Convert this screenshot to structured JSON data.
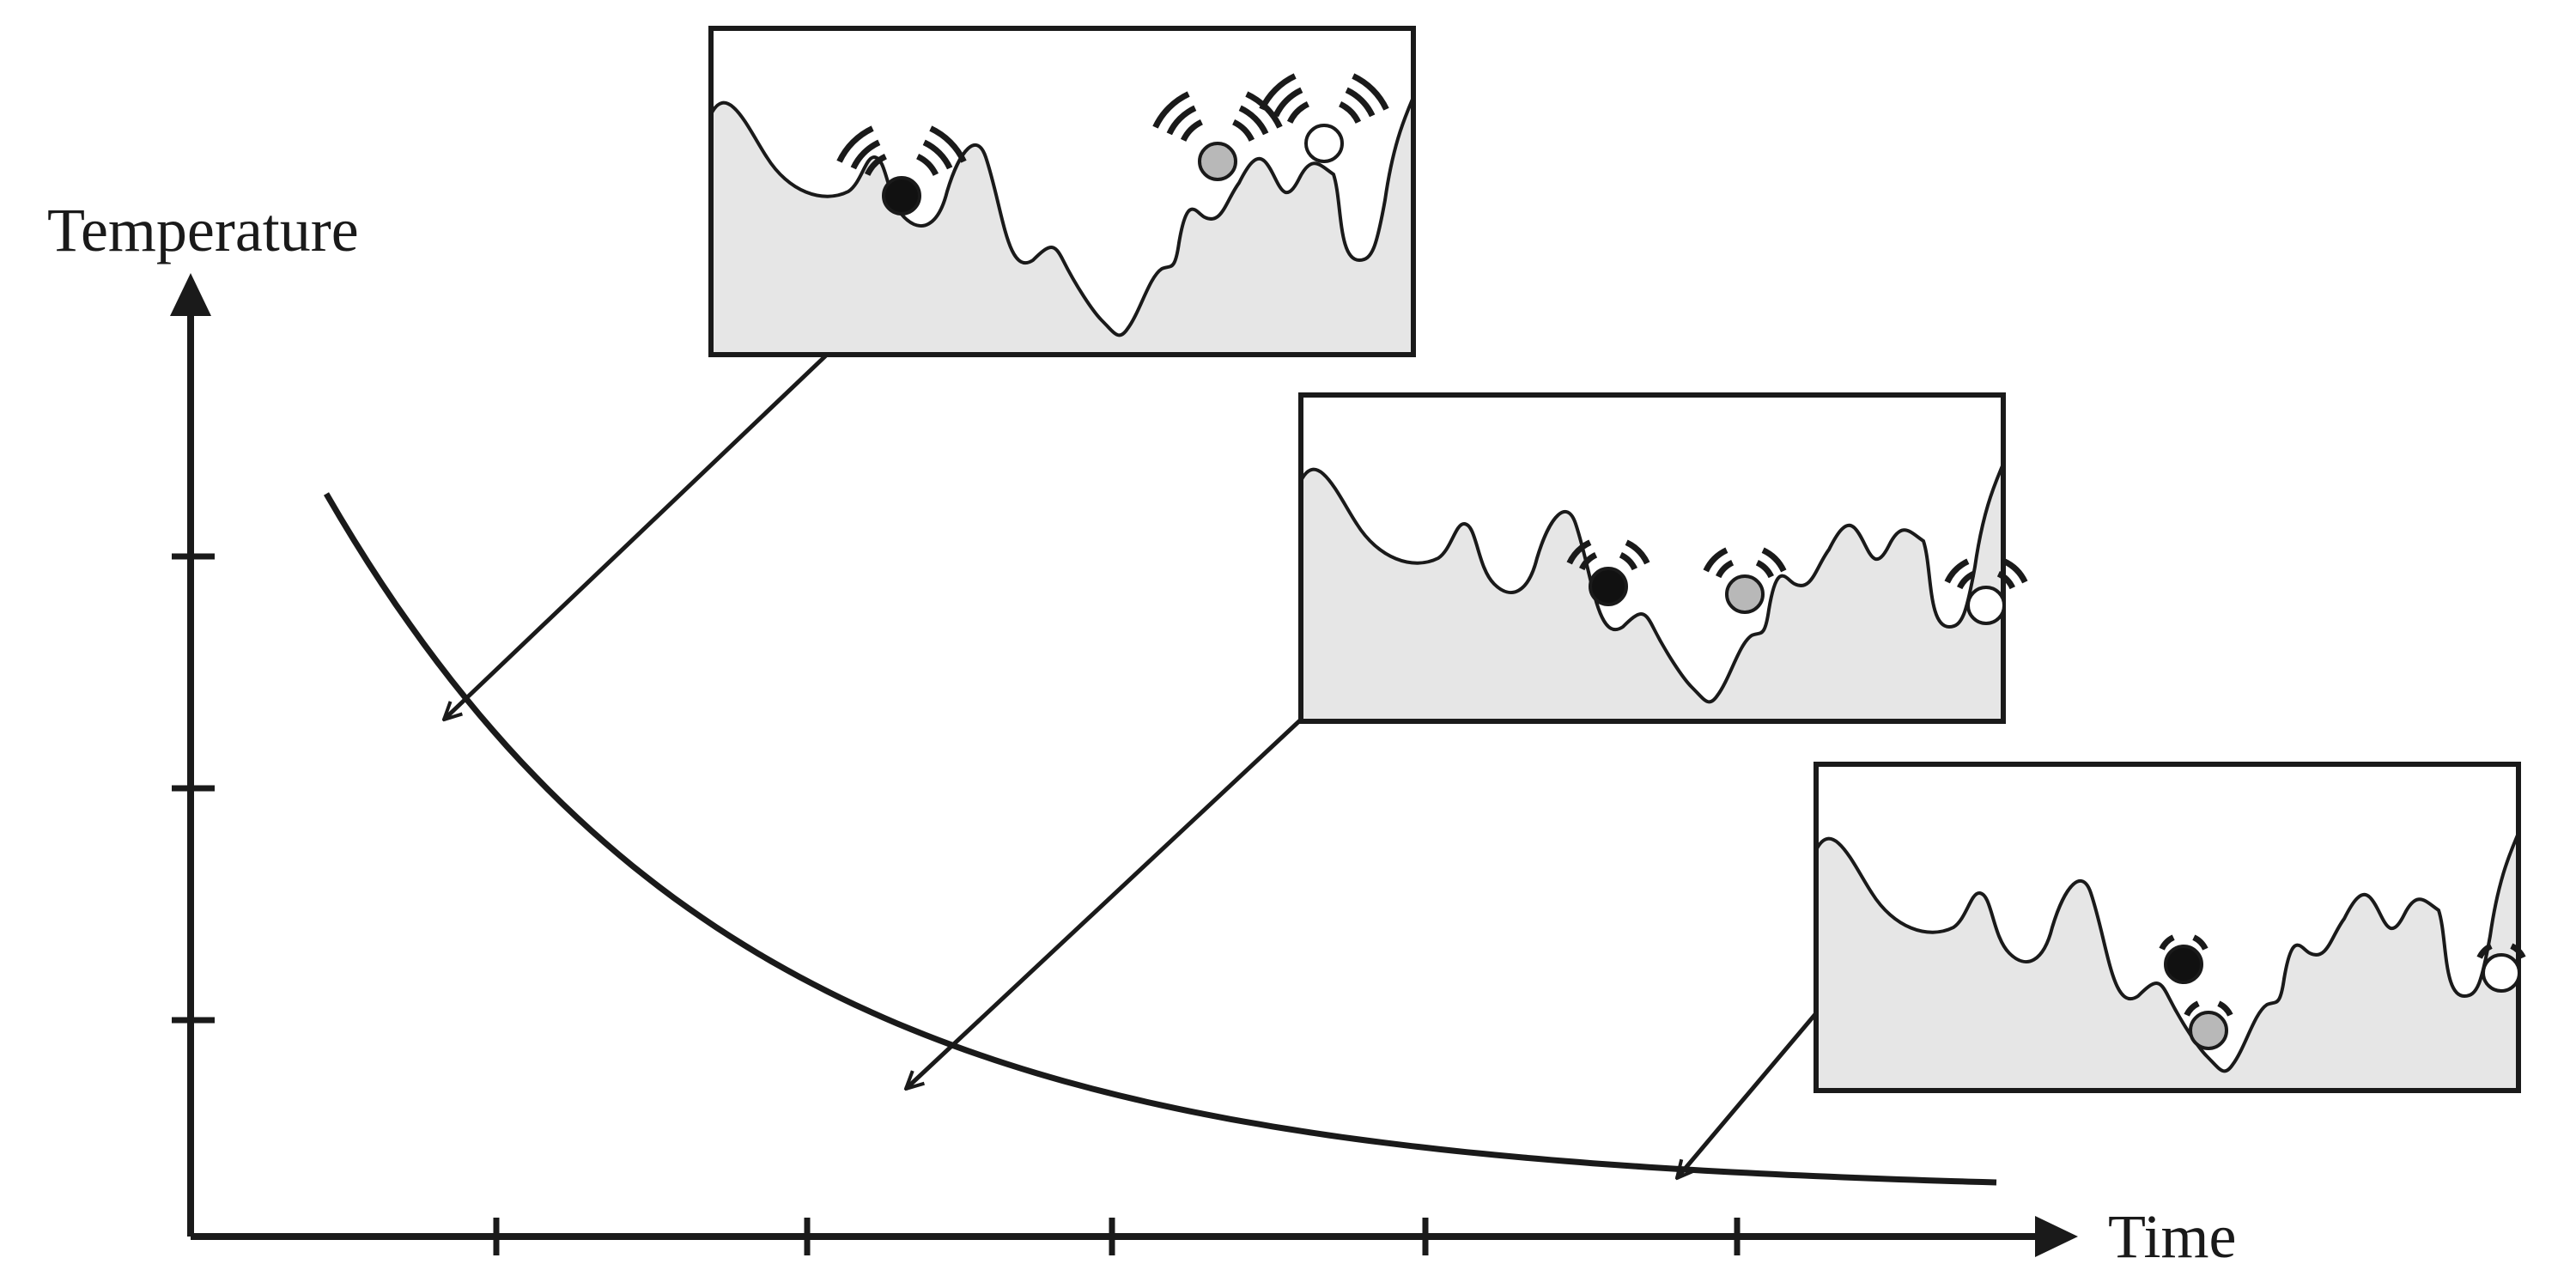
{
  "axes": {
    "y_label": "Temperature",
    "x_label": "Time",
    "y_ticks": 3,
    "x_ticks": 5
  },
  "curve": {
    "shape": "exponential-decay"
  },
  "panels": [
    {
      "stage": "high temperature",
      "balls": [
        "black",
        "gray",
        "white"
      ],
      "vibration": "strong"
    },
    {
      "stage": "medium temperature",
      "balls": [
        "black",
        "gray",
        "white"
      ],
      "vibration": "medium"
    },
    {
      "stage": "low temperature",
      "balls": [
        "black",
        "gray",
        "white"
      ],
      "vibration": "weak"
    }
  ],
  "colors": {
    "stroke": "#1a1a1a",
    "panel_fill": "#e6e6e6",
    "ball_black": "#111111",
    "ball_gray": "#b8b8b8",
    "ball_white": "#ffffff"
  }
}
